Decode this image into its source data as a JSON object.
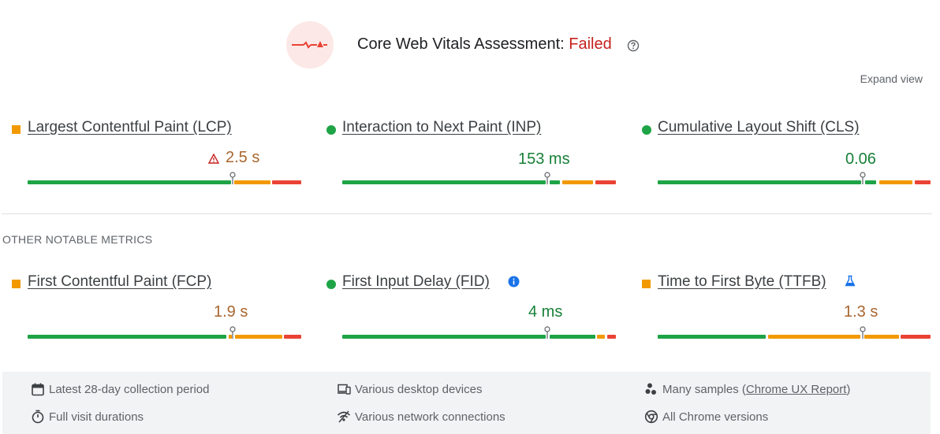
{
  "assessment": {
    "title_prefix": "Core Web Vitals Assessment: ",
    "status": "Failed",
    "expand_label": "Expand view"
  },
  "core_metrics": [
    {
      "name": "Largest Contentful Paint (LCP)",
      "value": "2.5 s",
      "rating": "needs-improvement",
      "warning": true
    },
    {
      "name": "Interaction to Next Paint (INP)",
      "value": "153 ms",
      "rating": "good"
    },
    {
      "name": "Cumulative Layout Shift (CLS)",
      "value": "0.06",
      "rating": "good"
    }
  ],
  "other_section_label": "OTHER NOTABLE METRICS",
  "other_metrics": [
    {
      "name": "First Contentful Paint (FCP)",
      "value": "1.9 s",
      "rating": "needs-improvement"
    },
    {
      "name": "First Input Delay (FID)",
      "value": "4 ms",
      "rating": "good",
      "info_icon": true
    },
    {
      "name": "Time to First Byte (TTFB)",
      "value": "1.3 s",
      "rating": "needs-improvement",
      "experimental_icon": true
    }
  ],
  "footer": {
    "collection_period": "Latest 28-day collection period",
    "devices": "Various desktop devices",
    "samples_prefix": "Many samples (",
    "samples_link": "Chrome UX Report",
    "samples_suffix": ")",
    "visit_durations": "Full visit durations",
    "network": "Various network connections",
    "chrome_versions": "All Chrome versions"
  },
  "colors": {
    "good": "#1ea446",
    "needs_improvement": "#f29900",
    "poor": "#ea4335",
    "failed_text": "#c5221f"
  }
}
